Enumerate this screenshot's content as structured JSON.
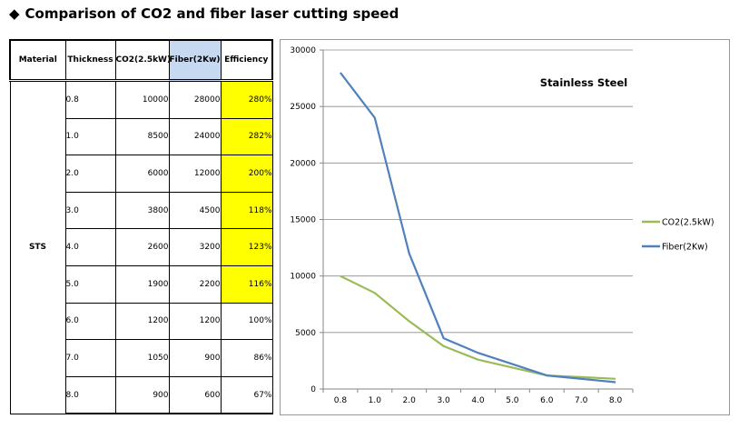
{
  "page": {
    "title_symbol": "◆",
    "title": "Comparison of CO2 and fiber laser cutting speed"
  },
  "table": {
    "headers": [
      "Material",
      "Thickness",
      "CO2(2.5kW)",
      "Fiber(2Kw)",
      "Efficiency"
    ],
    "material": "STS",
    "rows": [
      {
        "thickness": "0.8",
        "co2": "10000",
        "fiber": "28000",
        "efficiency": "280%",
        "highlight": true
      },
      {
        "thickness": "1.0",
        "co2": "8500",
        "fiber": "24000",
        "efficiency": "282%",
        "highlight": true
      },
      {
        "thickness": "2.0",
        "co2": "6000",
        "fiber": "12000",
        "efficiency": "200%",
        "highlight": true
      },
      {
        "thickness": "3.0",
        "co2": "3800",
        "fiber": "4500",
        "efficiency": "118%",
        "highlight": true
      },
      {
        "thickness": "4.0",
        "co2": "2600",
        "fiber": "3200",
        "efficiency": "123%",
        "highlight": true
      },
      {
        "thickness": "5.0",
        "co2": "1900",
        "fiber": "2200",
        "efficiency": "116%",
        "highlight": true
      },
      {
        "thickness": "6.0",
        "co2": "1200",
        "fiber": "1200",
        "efficiency": "100%",
        "highlight": false
      },
      {
        "thickness": "7.0",
        "co2": "1050",
        "fiber": "900",
        "efficiency": "86%",
        "highlight": false
      },
      {
        "thickness": "8.0",
        "co2": "900",
        "fiber": "600",
        "efficiency": "67%",
        "highlight": false
      }
    ],
    "highlight_color": "#ffff00",
    "fiber_header_color": "#c6d9f1"
  },
  "chart_data": {
    "type": "line",
    "title": "Stainless Steel",
    "categories": [
      "0.8",
      "1.0",
      "2.0",
      "3.0",
      "4.0",
      "5.0",
      "6.0",
      "7.0",
      "8.0"
    ],
    "series": [
      {
        "name": "CO2(2.5kW)",
        "color": "#9bbb59",
        "values": [
          10000,
          8500,
          6000,
          3800,
          2600,
          1900,
          1200,
          1050,
          900
        ]
      },
      {
        "name": "Fiber(2Kw)",
        "color": "#4f81bd",
        "values": [
          28000,
          24000,
          12000,
          4500,
          3200,
          2200,
          1200,
          900,
          600
        ]
      }
    ],
    "ylim": [
      0,
      30000
    ],
    "yticks": [
      0,
      5000,
      10000,
      15000,
      20000,
      25000,
      30000
    ],
    "grid": true,
    "legend": "right"
  }
}
